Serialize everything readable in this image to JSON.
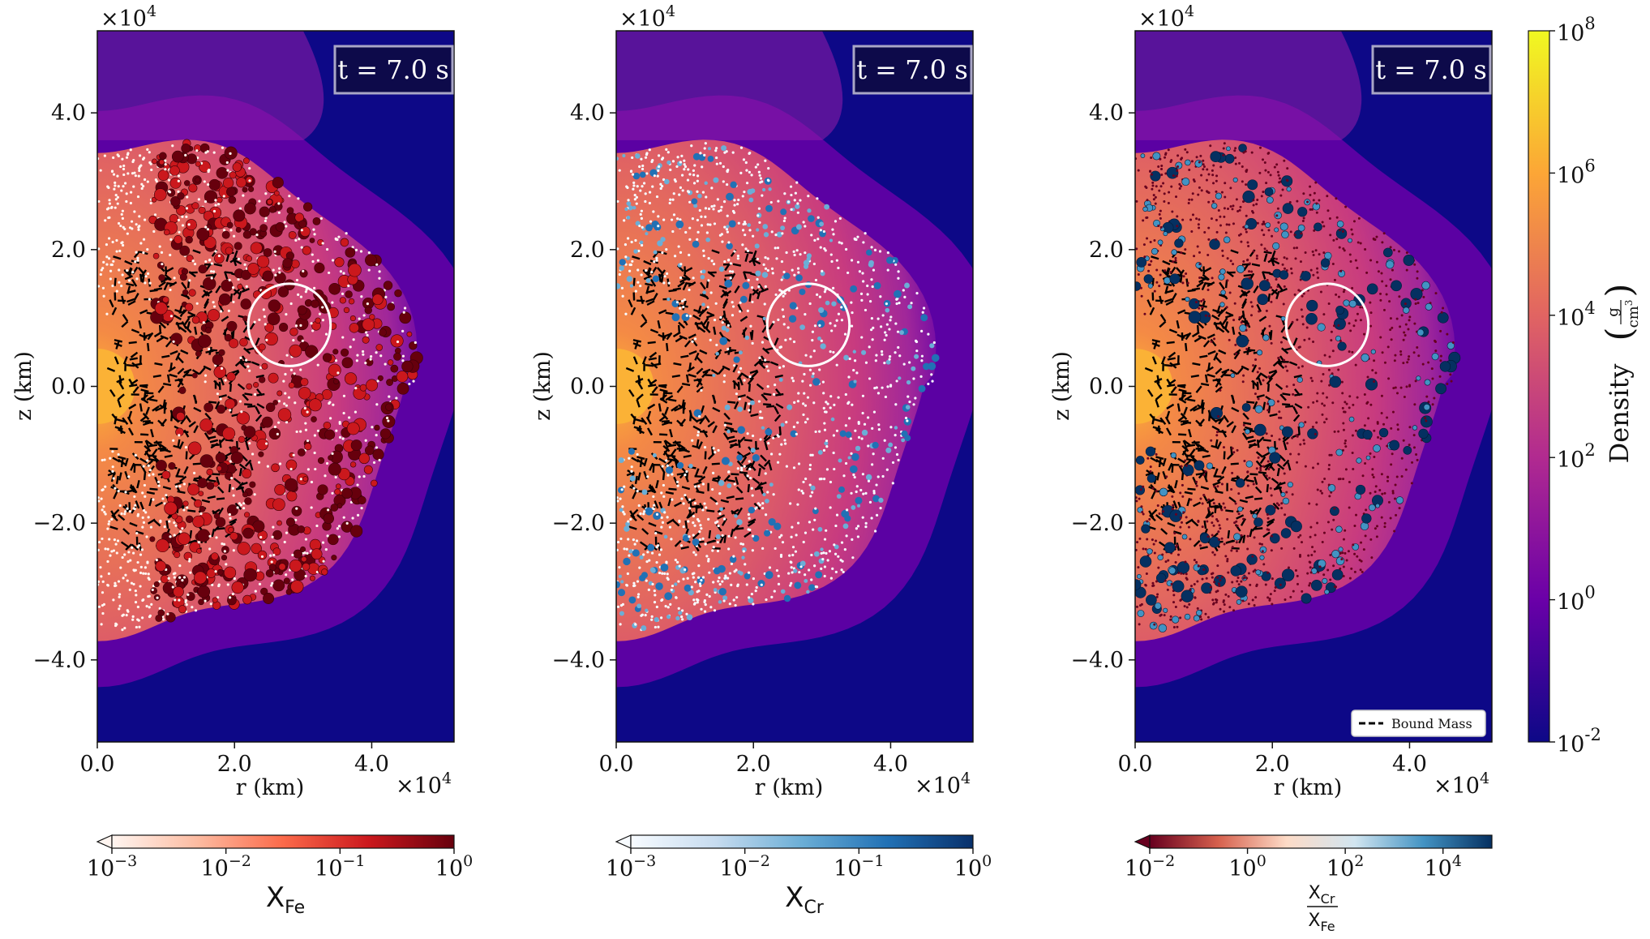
{
  "colors": {
    "background_far": "#0d0887",
    "density_stops": [
      "#0d0887",
      "#6a00a8",
      "#b12a90",
      "#e16462",
      "#fca636",
      "#f0f921"
    ],
    "fe_stops": [
      "#fff5f0",
      "#fcbba1",
      "#fb6a4a",
      "#cb181d",
      "#67000d"
    ],
    "cr_stops": [
      "#f7fbff",
      "#c6dbef",
      "#6baed6",
      "#2171b5",
      "#08306b"
    ],
    "ratio_stops": [
      "#67001f",
      "#d6604d",
      "#fddbc7",
      "#d1e5f0",
      "#4393c3",
      "#053061"
    ],
    "bound_mass": "#000000",
    "circle": "#ffffff",
    "time_box": "#0d0a4a",
    "time_box_border": "#a9a6c6"
  },
  "chart_data": [
    {
      "type": "scatter",
      "panel": "Fe abundance",
      "time_label": "t = 7.0 s",
      "xlabel": "r (km)",
      "ylabel": "z (km)",
      "x_multiplier": "×10",
      "x_exponent": "4",
      "y_multiplier": "×10",
      "y_exponent": "4",
      "xlim": [
        0,
        52000
      ],
      "ylim": [
        -52000,
        52000
      ],
      "x_ticks": [
        0,
        20000,
        40000
      ],
      "x_tick_labels": [
        "0.0",
        "2.0",
        "4.0"
      ],
      "y_ticks": [
        40000,
        20000,
        0,
        -20000,
        -40000
      ],
      "y_tick_labels": [
        "4.0",
        "2.0",
        "0.0",
        "−2.0",
        "−4.0"
      ],
      "highlight_circle": {
        "center_r": 28000,
        "center_z": 9000,
        "radius": 6000
      },
      "tracer_color": "Fe",
      "colorbar_label": "X",
      "colorbar_label_sub": "Fe",
      "colorbar_ticks_base": [
        "10",
        "10",
        "10",
        "10"
      ],
      "colorbar_ticks_exp": [
        "−3",
        "−2",
        "−1",
        "0"
      ],
      "colorbar_range_log": [
        -3,
        0
      ]
    },
    {
      "type": "scatter",
      "panel": "Cr abundance",
      "time_label": "t = 7.0 s",
      "xlabel": "r (km)",
      "ylabel": "z (km)",
      "x_multiplier": "×10",
      "x_exponent": "4",
      "y_multiplier": "×10",
      "y_exponent": "4",
      "xlim": [
        0,
        52000
      ],
      "ylim": [
        -52000,
        52000
      ],
      "x_ticks": [
        0,
        20000,
        40000
      ],
      "x_tick_labels": [
        "0.0",
        "2.0",
        "4.0"
      ],
      "y_ticks": [
        40000,
        20000,
        0,
        -20000,
        -40000
      ],
      "y_tick_labels": [
        "4.0",
        "2.0",
        "0.0",
        "−2.0",
        "−4.0"
      ],
      "highlight_circle": {
        "center_r": 28000,
        "center_z": 9000,
        "radius": 6000
      },
      "tracer_color": "Cr",
      "colorbar_label": "X",
      "colorbar_label_sub": "Cr",
      "colorbar_ticks_base": [
        "10",
        "10",
        "10",
        "10"
      ],
      "colorbar_ticks_exp": [
        "−3",
        "−2",
        "−1",
        "0"
      ],
      "colorbar_range_log": [
        -3,
        0
      ]
    },
    {
      "type": "scatter",
      "panel": "Cr/Fe ratio",
      "time_label": "t = 7.0 s",
      "xlabel": "r (km)",
      "ylabel": "z (km)",
      "x_multiplier": "×10",
      "x_exponent": "4",
      "y_multiplier": "×10",
      "y_exponent": "4",
      "xlim": [
        0,
        52000
      ],
      "ylim": [
        -52000,
        52000
      ],
      "x_ticks": [
        0,
        20000,
        40000
      ],
      "x_tick_labels": [
        "0.0",
        "2.0",
        "4.0"
      ],
      "y_ticks": [
        40000,
        20000,
        0,
        -20000,
        -40000
      ],
      "y_tick_labels": [
        "4.0",
        "2.0",
        "0.0",
        "−2.0",
        "−4.0"
      ],
      "highlight_circle": {
        "center_r": 28000,
        "center_z": 9000,
        "radius": 6000
      },
      "tracer_color": "ratio",
      "legend": "Bound Mass",
      "colorbar_label_num": "X",
      "colorbar_label_num_sub": "Cr",
      "colorbar_label_den": "X",
      "colorbar_label_den_sub": "Fe",
      "colorbar_ticks_base": [
        "10",
        "10",
        "10",
        "10"
      ],
      "colorbar_ticks_exp": [
        "−2",
        "0",
        "2",
        "4"
      ],
      "colorbar_range_log": [
        -2,
        5
      ]
    },
    {
      "type": "heatmap",
      "panel": "density colorbar",
      "label": "Density",
      "units_num": "g",
      "units_den": "cm",
      "units_den_exp": "3",
      "range_log": [
        -2,
        8
      ],
      "ticks_base": [
        "10",
        "10",
        "10",
        "10",
        "10",
        "10"
      ],
      "ticks_exp": [
        "8",
        "6",
        "4",
        "2",
        "0",
        "-2"
      ],
      "ticks_log": [
        8,
        6,
        4,
        2,
        0,
        -2
      ]
    }
  ]
}
